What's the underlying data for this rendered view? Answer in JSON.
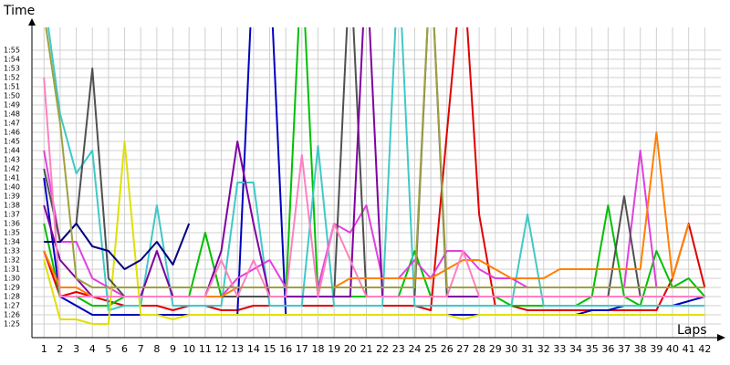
{
  "chart_data": {
    "type": "line",
    "y_label": "Time",
    "x_label": "Laps",
    "x": [
      1,
      2,
      3,
      4,
      5,
      6,
      7,
      8,
      9,
      10,
      11,
      12,
      13,
      14,
      15,
      16,
      17,
      18,
      19,
      20,
      21,
      22,
      23,
      24,
      25,
      26,
      27,
      28,
      29,
      30,
      31,
      32,
      33,
      34,
      35,
      36,
      37,
      38,
      39,
      40,
      41,
      42
    ],
    "xlim": [
      0.25,
      43
    ],
    "xticks": [
      1,
      2,
      3,
      4,
      5,
      6,
      7,
      8,
      9,
      10,
      11,
      12,
      13,
      14,
      15,
      16,
      17,
      18,
      19,
      20,
      21,
      22,
      23,
      24,
      25,
      26,
      27,
      28,
      29,
      30,
      31,
      32,
      33,
      34,
      35,
      36,
      37,
      38,
      39,
      40,
      41,
      42
    ],
    "ylim": [
      83.5,
      117.5
    ],
    "yticks": [
      {
        "value": 85,
        "label": "1:25"
      },
      {
        "value": 86,
        "label": "1:26"
      },
      {
        "value": 87,
        "label": "1:27"
      },
      {
        "value": 88,
        "label": "1:28"
      },
      {
        "value": 89,
        "label": "1:29"
      },
      {
        "value": 90,
        "label": "1:30"
      },
      {
        "value": 91,
        "label": "1:31"
      },
      {
        "value": 92,
        "label": "1:32"
      },
      {
        "value": 93,
        "label": "1:33"
      },
      {
        "value": 94,
        "label": "1:34"
      },
      {
        "value": 95,
        "label": "1:35"
      },
      {
        "value": 96,
        "label": "1:36"
      },
      {
        "value": 97,
        "label": "1:37"
      },
      {
        "value": 98,
        "label": "1:38"
      },
      {
        "value": 99,
        "label": "1:39"
      },
      {
        "value": 100,
        "label": "1:40"
      },
      {
        "value": 101,
        "label": "1:41"
      },
      {
        "value": 102,
        "label": "1:42"
      },
      {
        "value": 103,
        "label": "1:43"
      },
      {
        "value": 104,
        "label": "1:44"
      },
      {
        "value": 105,
        "label": "1:45"
      },
      {
        "value": 106,
        "label": "1:46"
      },
      {
        "value": 107,
        "label": "1:47"
      },
      {
        "value": 108,
        "label": "1:48"
      },
      {
        "value": 109,
        "label": "1:49"
      },
      {
        "value": 110,
        "label": "1:50"
      },
      {
        "value": 111,
        "label": "1:51"
      },
      {
        "value": 112,
        "label": "1:52"
      },
      {
        "value": 113,
        "label": "1:53"
      },
      {
        "value": 114,
        "label": "1:54"
      },
      {
        "value": 115,
        "label": "1:55"
      }
    ],
    "grid": true,
    "series": [
      {
        "color": "#e00000",
        "values": [
          93,
          88,
          88.5,
          88,
          87.5,
          87,
          87,
          87,
          86.5,
          87,
          87,
          86.5,
          86.5,
          87,
          87,
          87,
          87,
          87,
          87,
          87,
          87,
          87,
          87,
          87,
          86.5,
          106,
          125,
          97,
          87,
          87,
          86.5,
          86.5,
          86.5,
          86.5,
          86.5,
          86.5,
          86.5,
          86.5,
          86.5,
          90,
          96,
          89
        ]
      },
      {
        "color": "#0000c0",
        "values": [
          101,
          88,
          87,
          86,
          86,
          86,
          86,
          86,
          86,
          86,
          86,
          86,
          86,
          125,
          125,
          86,
          86,
          86,
          86,
          86,
          86,
          86,
          86,
          86,
          86,
          86,
          86,
          86,
          86,
          86,
          86,
          86,
          86,
          86,
          86.5,
          86.5,
          87,
          87,
          87,
          87,
          87.5,
          88
        ]
      },
      {
        "color": "#00c000",
        "values": [
          96,
          88,
          88,
          87,
          87,
          88,
          88,
          88,
          88,
          88,
          95,
          88,
          88,
          88,
          88,
          88,
          125,
          88,
          88,
          88,
          88,
          88,
          88,
          93,
          88,
          88,
          88,
          88,
          88,
          87,
          87,
          87,
          87,
          87,
          88,
          98,
          88,
          87,
          93,
          89,
          90,
          88
        ]
      },
      {
        "color": "#40c8c8",
        "values": [
          121,
          108,
          101.5,
          104,
          86.5,
          87,
          87,
          98,
          87,
          87,
          87,
          87,
          100.5,
          100.5,
          87,
          87,
          87,
          104.5,
          87,
          87,
          87,
          87,
          125,
          87,
          87,
          87,
          87,
          87,
          87,
          87,
          97,
          87,
          87,
          87,
          87,
          87,
          87,
          87,
          87,
          87,
          87,
          87
        ]
      },
      {
        "color": "#e040e0",
        "values": [
          104,
          94,
          94,
          90,
          89,
          88,
          88,
          88,
          88,
          88,
          88,
          88,
          90,
          91,
          92,
          89,
          89,
          89,
          96,
          95,
          98,
          90,
          90,
          92,
          90,
          93,
          93,
          91,
          90,
          90,
          89,
          89,
          89,
          89,
          89,
          89,
          89,
          104,
          89,
          89,
          89,
          89
        ]
      },
      {
        "color": "#e0e000",
        "values": [
          92,
          85.5,
          85.5,
          85,
          85,
          105,
          86,
          86,
          85.5,
          86,
          86,
          86,
          86,
          86,
          86,
          86,
          86,
          86,
          86,
          86,
          86,
          86,
          86,
          86,
          86,
          86,
          85.5,
          86,
          86,
          86,
          86,
          86,
          86,
          86,
          86,
          86,
          86,
          86,
          86,
          86,
          86,
          86
        ]
      },
      {
        "color": "#505050",
        "values": [
          102,
          94,
          96,
          113,
          90,
          88,
          88,
          88,
          88,
          88,
          88,
          88,
          88,
          88,
          88,
          88,
          88,
          88,
          88,
          125,
          88,
          88,
          88,
          88,
          125,
          88,
          88,
          88,
          88,
          88,
          88,
          88,
          88,
          88,
          88,
          88,
          99,
          88,
          88,
          88,
          88,
          88
        ]
      },
      {
        "color": "#8000a0",
        "values": [
          98,
          92,
          90,
          88,
          88,
          88,
          88,
          93,
          88,
          88,
          88,
          93,
          105,
          96,
          88,
          88,
          88,
          88,
          88,
          88,
          125,
          88,
          88,
          88,
          88,
          88,
          88,
          88,
          88,
          88,
          88,
          88,
          88,
          88,
          88,
          88,
          88,
          88,
          88,
          88,
          88,
          88
        ]
      },
      {
        "color": "#000080",
        "values": [
          94,
          94,
          96,
          93.5,
          93,
          91,
          92,
          94,
          91.5,
          96,
          null,
          null,
          null,
          null,
          null,
          null,
          null,
          null,
          null,
          null,
          null,
          null,
          null,
          null,
          null,
          null,
          null,
          null,
          null,
          null,
          null,
          null,
          null,
          null,
          null,
          null,
          null,
          null,
          null,
          null,
          null,
          null
        ]
      },
      {
        "color": "#ff8000",
        "values": [
          93,
          89,
          89,
          88,
          88,
          88,
          88,
          88,
          88,
          88,
          88,
          88,
          89,
          89,
          89,
          89,
          89,
          89,
          89,
          90,
          90,
          90,
          90,
          90,
          90,
          91,
          92,
          92,
          91,
          90,
          90,
          90,
          91,
          91,
          91,
          91,
          91,
          91,
          106,
          90,
          96,
          null
        ]
      },
      {
        "color": "#ff80c0",
        "values": [
          112,
          88,
          88,
          88,
          88,
          88,
          88,
          88,
          88,
          88,
          88,
          92,
          88,
          92,
          88,
          88,
          103.5,
          88,
          96,
          92,
          88,
          88,
          88,
          88,
          88,
          88,
          93,
          88,
          88,
          88,
          88,
          88,
          88,
          88,
          88,
          88,
          88,
          88,
          88,
          88,
          88,
          88
        ]
      },
      {
        "color": "#a0a040",
        "values": [
          119,
          107,
          90,
          89,
          89,
          89,
          89,
          89,
          89,
          89,
          89,
          89,
          89,
          89,
          89,
          89,
          89,
          89,
          89,
          89,
          89,
          89,
          89,
          89,
          125,
          89,
          89,
          89,
          89,
          89,
          89,
          89,
          89,
          89,
          89,
          89,
          89,
          89,
          89,
          89,
          89,
          89
        ]
      }
    ]
  }
}
